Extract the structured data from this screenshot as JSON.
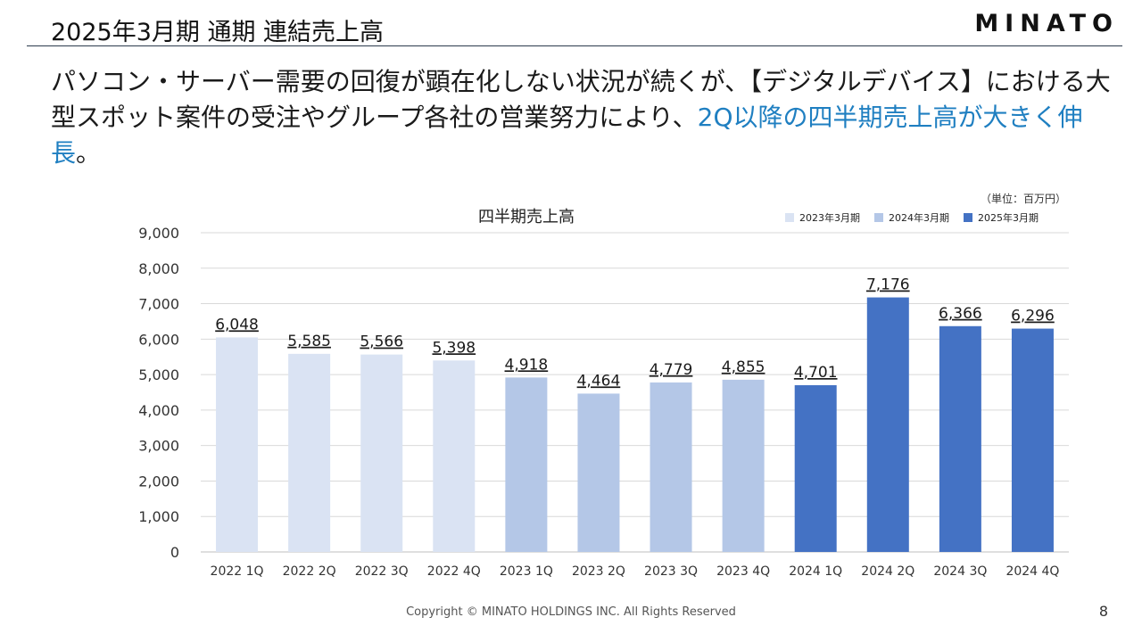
{
  "header": {
    "title": "2025年3月期 通期 連結売上高",
    "logo": "MINATO"
  },
  "headline": {
    "text_before": "パソコン・サーバー需要の回復が顕在化しない状況が続くが、【デジタルデバイス】における大型スポット案件の受注やグループ各社の営業努力により、",
    "text_accent": "2Q以降の四半期売上高が大きく伸長",
    "text_after": "。",
    "accent_color": "#1f7fc1"
  },
  "unit_note": "（単位：百万円）",
  "footer": {
    "copyright": "Copyright © MINATO HOLDINGS INC. All Rights Reserved",
    "page_number": "8"
  },
  "chart_data": {
    "type": "bar",
    "title": "四半期売上高",
    "categories": [
      "2022 1Q",
      "2022 2Q",
      "2022 3Q",
      "2022 4Q",
      "2023 1Q",
      "2023 2Q",
      "2023 3Q",
      "2023 4Q",
      "2024 1Q",
      "2024 2Q",
      "2024 3Q",
      "2024 4Q"
    ],
    "values": [
      6048,
      5585,
      5566,
      5398,
      4918,
      4464,
      4779,
      4855,
      4701,
      7176,
      6366,
      6296
    ],
    "value_labels": [
      "6,048",
      "5,585",
      "5,566",
      "5,398",
      "4,918",
      "4,464",
      "4,779",
      "4,855",
      "4,701",
      "7,176",
      "6,366",
      "6,296"
    ],
    "bar_series_index": [
      0,
      0,
      0,
      0,
      1,
      1,
      1,
      1,
      2,
      2,
      2,
      2
    ],
    "legend": [
      {
        "name": "2023年3月期",
        "color": "#dae3f3"
      },
      {
        "name": "2024年3月期",
        "color": "#b4c7e7"
      },
      {
        "name": "2025年3月期",
        "color": "#4472c4"
      }
    ],
    "legend_position": "top-right",
    "ylim": [
      0,
      9000
    ],
    "yticks": [
      0,
      1000,
      2000,
      3000,
      4000,
      5000,
      6000,
      7000,
      8000,
      9000
    ],
    "ytick_labels": [
      "0",
      "1,000",
      "2,000",
      "3,000",
      "4,000",
      "5,000",
      "6,000",
      "7,000",
      "8,000",
      "9,000"
    ],
    "grid": true,
    "xlabel": "",
    "ylabel": ""
  }
}
